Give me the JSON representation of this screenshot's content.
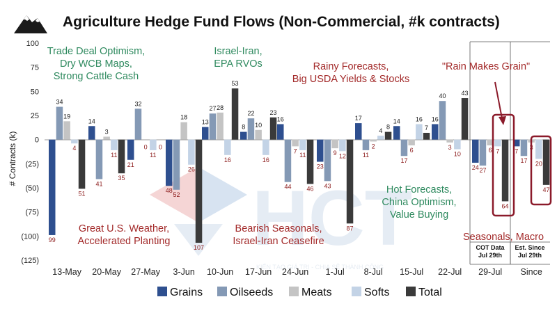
{
  "chart_data": {
    "type": "bar",
    "title": "Agriculture Hedge Fund Flows (Non-Commercial, #k contracts)",
    "ylabel": "# Contracts (k)",
    "ylim": [
      -125,
      100
    ],
    "yticks": [
      "100",
      "75",
      "50",
      "25",
      "0",
      "(25)",
      "(50)",
      "(75)",
      "(100)",
      "(125)"
    ],
    "ytick_values": [
      100,
      75,
      50,
      25,
      0,
      -25,
      -50,
      -75,
      -100,
      -125
    ],
    "categories": [
      "13-May",
      "20-May",
      "27-May",
      "3-Jun",
      "10-Jun",
      "17-Jun",
      "24-Jun",
      "1-Jul",
      "8-Jul",
      "15-Jul",
      "22-Jul",
      "29-Jul",
      "Since"
    ],
    "series": [
      {
        "name": "Grains",
        "color": "#2e4f8f",
        "values": [
          -99,
          14,
          -21,
          -48,
          13,
          8,
          16,
          -23,
          17,
          14,
          16,
          -24,
          -7
        ]
      },
      {
        "name": "Oilseeds",
        "color": "#8499b5",
        "values": [
          34,
          -41,
          32,
          -52,
          27,
          22,
          -44,
          -43,
          -11,
          -17,
          40,
          -27,
          -17
        ]
      },
      {
        "name": "Meats",
        "color": "#c4c4c4",
        "values": [
          19,
          3,
          0,
          18,
          28,
          10,
          -7,
          -9,
          -2,
          -6,
          -3,
          -6,
          -3
        ]
      },
      {
        "name": "Softs",
        "color": "#c3d3e6",
        "values": [
          -4,
          -11,
          -11,
          -26,
          -16,
          -16,
          -11,
          -12,
          4,
          16,
          -10,
          -7,
          -20
        ]
      },
      {
        "name": "Total",
        "color": "#3a3a3a",
        "values": [
          -51,
          -35,
          0,
          -107,
          53,
          23,
          -46,
          -87,
          8,
          7,
          43,
          -64,
          -47
        ]
      }
    ],
    "data_labels": [
      [
        "99",
        "14",
        "21",
        "48",
        "13",
        "8",
        "16",
        "23",
        "17",
        "14",
        "16",
        "24",
        "7"
      ],
      [
        "34",
        "41",
        "32",
        "52",
        "27",
        "22",
        "44",
        "43",
        "11",
        "17",
        "40",
        "27",
        "17"
      ],
      [
        "19",
        "3",
        "0",
        "18",
        "28",
        "10",
        "7",
        "9",
        "2",
        "6",
        "3",
        "6",
        "3"
      ],
      [
        "4",
        "11",
        "11",
        "26",
        "16",
        "16",
        "11",
        "12",
        "4",
        "16",
        "10",
        "7",
        "20"
      ],
      [
        "51",
        "35",
        "0",
        "107",
        "53",
        "23",
        "46",
        "87",
        "8",
        "7",
        "43",
        "64",
        "47"
      ]
    ],
    "label_colors": {
      "positive": "#1a1a1a",
      "negative": "#8b1a1a"
    },
    "annotations": [
      {
        "lines": [
          "Trade Deal Optimism,",
          "Dry WCB Maps,",
          "Strong Cattle Cash"
        ],
        "color": "#2f8a5f"
      },
      {
        "lines": [
          "Israel-Iran,",
          "EPA RVOs"
        ],
        "color": "#2f8a5f"
      },
      {
        "lines": [
          "Rainy Forecasts,",
          "Big USDA Yields & Stocks"
        ],
        "color": "#a32a2a"
      },
      {
        "lines": [
          "\"Rain Makes Grain\""
        ],
        "color": "#a32a2a"
      },
      {
        "lines": [
          "Hot Forecasts,",
          "China Optimism,",
          "Value Buying"
        ],
        "color": "#2f8a5f"
      },
      {
        "lines": [
          "Great U.S. Weather,",
          "Accelerated Planting"
        ],
        "color": "#a32a2a"
      },
      {
        "lines": [
          "Bearish Seasonals,",
          "Israel-Iran Ceasefire"
        ],
        "color": "#a32a2a"
      },
      {
        "lines": [
          "Seasonals, Macro"
        ],
        "color": "#a32a2a"
      }
    ],
    "sub_labels": [
      {
        "lines": [
          "COT Data",
          "Jul 29th"
        ]
      },
      {
        "lines": [
          "Est. Since",
          "Jul 29th"
        ]
      }
    ],
    "legend_position": "bottom",
    "grid": false
  },
  "watermark": {
    "text": "KIẾN TẠO GIÁ TRỊ - CHIA SẺ THÀNH CÔNG",
    "letters": "HCT"
  },
  "highlight_color": "#8b1a2a"
}
